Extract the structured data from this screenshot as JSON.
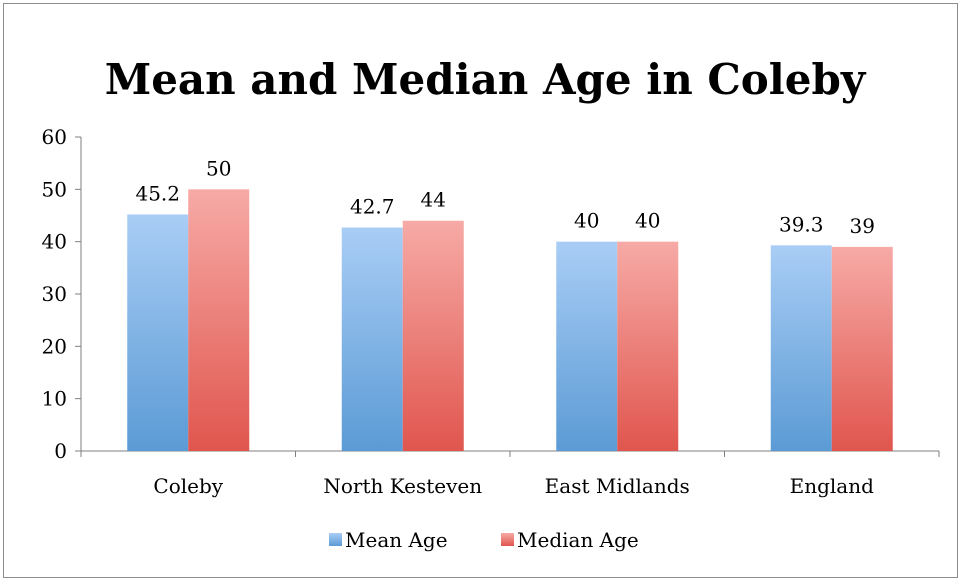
{
  "chart_data": {
    "type": "bar",
    "title": "Mean and Median Age in Coleby",
    "xlabel": "",
    "ylabel": "",
    "categories": [
      "Coleby",
      "North Kesteven",
      "East Midlands",
      "England"
    ],
    "series": [
      {
        "name": "Mean Age",
        "values": [
          45.2,
          42.7,
          40,
          39.3
        ],
        "color": "#5b9bd5",
        "color_light": "#a9cdf5"
      },
      {
        "name": "Median Age",
        "values": [
          50,
          44,
          40,
          39
        ],
        "color": "#e0564e",
        "color_light": "#f7aaa6"
      }
    ],
    "data_labels": [
      [
        "45.2",
        "42.7",
        "40",
        "39.3"
      ],
      [
        "50",
        "44",
        "40",
        "39"
      ]
    ],
    "yticks": [
      "0",
      "10",
      "20",
      "30",
      "40",
      "50",
      "60"
    ],
    "ylim": [
      0,
      60
    ],
    "grid": false,
    "legend_position": "bottom"
  }
}
